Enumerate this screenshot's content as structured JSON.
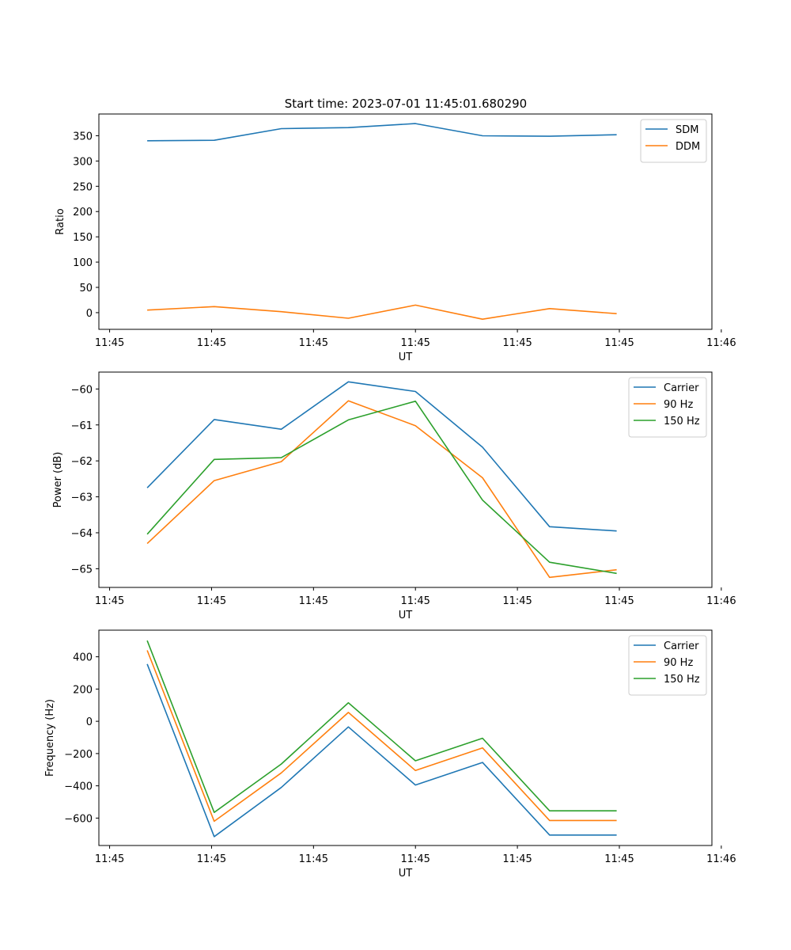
{
  "figure_title": "Start time: 2023-07-01 11:45:01.680290",
  "colors": {
    "blue": "#1f77b4",
    "orange": "#ff7f0e",
    "green": "#2ca02c"
  },
  "chart_data": [
    {
      "type": "line",
      "title": "Start time: 2023-07-01 11:45:01.680290",
      "xlabel": "UT",
      "ylabel": "Ratio",
      "x": [
        1,
        2,
        3,
        4,
        5,
        6,
        7,
        8
      ],
      "xlim": [
        0.28,
        9.42
      ],
      "xticks": [
        0.44,
        1.96,
        3.48,
        5.0,
        6.52,
        8.04,
        9.56
      ],
      "xtick_labels": [
        "11:45",
        "11:45",
        "11:45",
        "11:45",
        "11:45",
        "11:45",
        "11:46"
      ],
      "ylim": [
        -33,
        393
      ],
      "yticks": [
        0,
        50,
        100,
        150,
        200,
        250,
        300,
        350
      ],
      "ytick_labels": [
        "0",
        "50",
        "100",
        "150",
        "200",
        "250",
        "300",
        "350"
      ],
      "legend": "upper right",
      "series": [
        {
          "name": "SDM",
          "color": "#1f77b4",
          "values": [
            340,
            341,
            364,
            366,
            374,
            350,
            349,
            352
          ]
        },
        {
          "name": "DDM",
          "color": "#ff7f0e",
          "values": [
            5,
            12,
            2,
            -11,
            15,
            -13,
            8,
            -2
          ]
        }
      ]
    },
    {
      "type": "line",
      "title": "",
      "xlabel": "UT",
      "ylabel": "Power (dB)",
      "x": [
        1,
        2,
        3,
        4,
        5,
        6,
        7,
        8
      ],
      "xlim": [
        0.28,
        9.42
      ],
      "xticks": [
        0.44,
        1.96,
        3.48,
        5.0,
        6.52,
        8.04,
        9.56
      ],
      "xtick_labels": [
        "11:45",
        "11:45",
        "11:45",
        "11:45",
        "11:45",
        "11:45",
        "11:46"
      ],
      "ylim": [
        -65.52,
        -59.53
      ],
      "yticks": [
        -65,
        -64,
        -63,
        -62,
        -61,
        -60
      ],
      "ytick_labels": [
        "−65",
        "−64",
        "−63",
        "−62",
        "−61",
        "−60"
      ],
      "legend": "upper right",
      "series": [
        {
          "name": "Carrier",
          "color": "#1f77b4",
          "values": [
            -62.75,
            -60.85,
            -61.12,
            -59.8,
            -60.07,
            -61.62,
            -63.83,
            -63.95
          ]
        },
        {
          "name": "90 Hz",
          "color": "#ff7f0e",
          "values": [
            -64.3,
            -62.55,
            -62.02,
            -60.33,
            -61.02,
            -62.47,
            -65.24,
            -65.03
          ]
        },
        {
          "name": "150 Hz",
          "color": "#2ca02c",
          "values": [
            -64.04,
            -61.96,
            -61.91,
            -60.86,
            -60.34,
            -63.09,
            -64.82,
            -65.13
          ]
        }
      ]
    },
    {
      "type": "line",
      "title": "",
      "xlabel": "UT",
      "ylabel": "Frequency (Hz)",
      "x": [
        1,
        2,
        3,
        4,
        5,
        6,
        7,
        8
      ],
      "xlim": [
        0.28,
        9.42
      ],
      "xticks": [
        0.44,
        1.96,
        3.48,
        5.0,
        6.52,
        8.04,
        9.56
      ],
      "xtick_labels": [
        "11:45",
        "11:45",
        "11:45",
        "11:45",
        "11:45",
        "11:45",
        "11:46"
      ],
      "ylim": [
        -770,
        565
      ],
      "yticks": [
        -600,
        -400,
        -200,
        0,
        200,
        400
      ],
      "ytick_labels": [
        "−600",
        "−400",
        "−200",
        "0",
        "200",
        "400"
      ],
      "legend": "upper right",
      "series": [
        {
          "name": "Carrier",
          "color": "#1f77b4",
          "values": [
            355,
            -715,
            -410,
            -35,
            -395,
            -255,
            -705,
            -705
          ]
        },
        {
          "name": "90 Hz",
          "color": "#ff7f0e",
          "values": [
            440,
            -620,
            -320,
            55,
            -305,
            -165,
            -615,
            -615
          ]
        },
        {
          "name": "150 Hz",
          "color": "#2ca02c",
          "values": [
            500,
            -565,
            -265,
            115,
            -245,
            -105,
            -555,
            -555
          ]
        }
      ]
    }
  ]
}
